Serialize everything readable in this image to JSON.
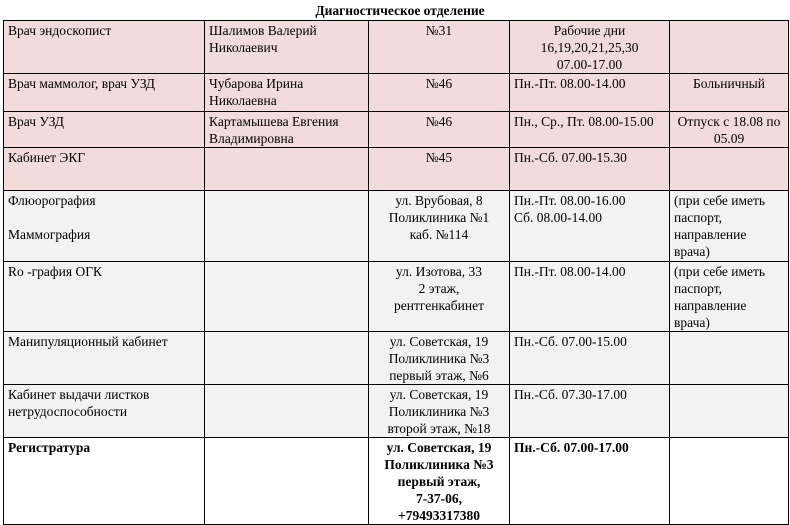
{
  "header": {
    "title": "Диагностическое отделение"
  },
  "table": {
    "rows": [
      [
        "Врач эндоскопист",
        "Шалимов Валерий Николаевич",
        "№31",
        "Рабочие дни\n16,19,20,21,25,30\n07.00-17.00",
        null
      ],
      [
        "Врач маммолог, врач УЗД",
        "Чубарова Ирина Николаевна",
        "№46",
        "Пн.-Пт.  08.00-14.00",
        "Больничный"
      ],
      [
        "Врач УЗД",
        "Картамышева Евгения Владимировна",
        "№46",
        "Пн., Ср., Пт.  08.00-15.00",
        "Отпуск с 18.08 по 05.09"
      ],
      [
        "Кабинет ЭКГ",
        null,
        "№45",
        "Пн.-Сб.  07.00-15.30",
        null
      ],
      [
        "Флюорография\n\nМаммография",
        null,
        "ул. Врубовая, 8\nПоликлиника №1\nкаб. №114",
        "Пн.-Пт.  08.00-16.00\nСб. 08.00-14.00",
        "(при себе иметь паспорт, направление врача)"
      ],
      [
        "Ro -графия ОГК",
        null,
        "ул. Изотова, 33\n2 этаж,\nрентгенкабинет",
        "Пн.-Пт.  08.00-14.00",
        "(при себе иметь паспорт, направление врача)"
      ],
      [
        "Манипуляционный кабинет",
        null,
        "ул. Советская, 19\nПоликлиника №3\nпервый этаж, №6",
        "Пн.-Сб.  07.00-15.00",
        null
      ],
      [
        "Кабинет выдачи листков нетрудоспособности",
        null,
        "ул. Советская, 19\nПоликлиника №3\nвторой этаж, №18",
        "Пн.-Сб.  07.30-17.00",
        null
      ],
      [
        "Регистратура",
        null,
        "ул. Советская, 19\nПоликлиника №3\nпервый этаж,\n7-37-06,\n+79493317380",
        "Пн.-Сб.  07.00-17.00",
        null
      ]
    ]
  }
}
